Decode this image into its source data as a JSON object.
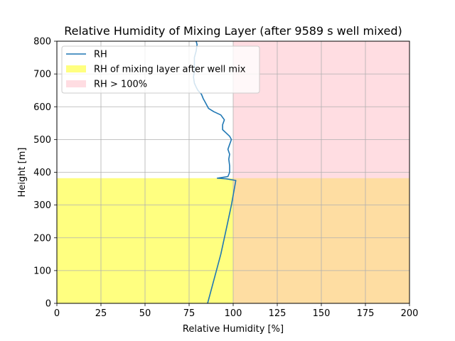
{
  "chart_data": {
    "type": "line",
    "title": "Relative Humidity of Mixing Layer (after 9589 s well mixed)",
    "xlabel": "Relative Humidity [%]",
    "ylabel": "Height [m]",
    "xlim": [
      0,
      200
    ],
    "ylim": [
      0,
      800
    ],
    "xticks": [
      "0",
      "25",
      "50",
      "75",
      "100",
      "125",
      "150",
      "175",
      "200"
    ],
    "yticks": [
      "0",
      "100",
      "200",
      "300",
      "400",
      "500",
      "600",
      "700",
      "800"
    ],
    "grid": true,
    "legend_placement": "top-left",
    "mixing_layer_top": 382,
    "saturation_threshold": 100,
    "series": [
      {
        "name": "RH",
        "color": "#1f77b4",
        "points": [
          [
            85.5,
            0
          ],
          [
            88,
            50
          ],
          [
            90.5,
            100
          ],
          [
            93,
            150
          ],
          [
            95,
            200
          ],
          [
            97,
            250
          ],
          [
            99,
            300
          ],
          [
            101.5,
            375
          ],
          [
            96,
            380
          ],
          [
            91,
            382
          ],
          [
            97,
            387
          ],
          [
            98,
            400
          ],
          [
            98,
            420
          ],
          [
            97.5,
            440
          ],
          [
            98,
            455
          ],
          [
            97,
            470
          ],
          [
            98,
            485
          ],
          [
            99,
            500
          ],
          [
            98,
            510
          ],
          [
            96,
            520
          ],
          [
            94,
            530
          ],
          [
            94,
            545
          ],
          [
            95,
            560
          ],
          [
            93,
            575
          ],
          [
            89,
            585
          ],
          [
            86,
            595
          ],
          [
            85,
            605
          ],
          [
            84,
            615
          ],
          [
            83,
            625
          ],
          [
            82,
            638
          ],
          [
            80,
            650
          ],
          [
            79,
            660
          ],
          [
            78,
            672
          ],
          [
            77.5,
            690
          ],
          [
            78,
            710
          ],
          [
            78,
            730
          ],
          [
            78,
            750
          ],
          [
            79,
            770
          ],
          [
            79.5,
            790
          ],
          [
            79,
            800
          ]
        ]
      },
      {
        "name": "RH of mixing layer after well mix",
        "color": "#ffff80",
        "region": {
          "x": [
            0,
            200
          ],
          "y": [
            0,
            382
          ]
        }
      },
      {
        "name": "RH > 100%",
        "color": "#ffdde2",
        "region": {
          "x": [
            100,
            200
          ],
          "y": [
            0,
            800
          ]
        }
      }
    ],
    "overlap_color": "#fedda2"
  }
}
